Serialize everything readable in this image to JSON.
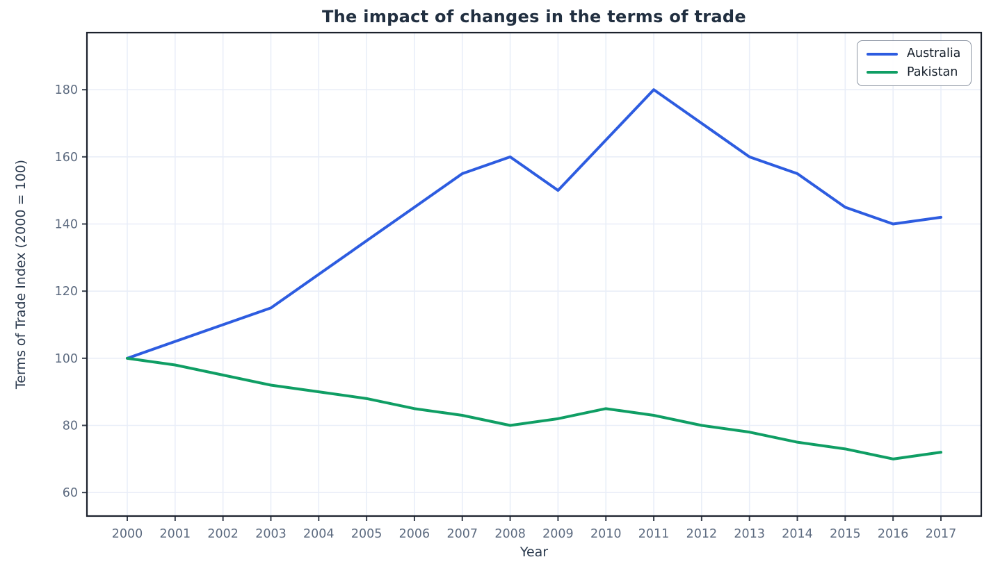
{
  "chart_data": {
    "type": "line",
    "title": "The impact of changes in the terms of trade",
    "xlabel": "Year",
    "ylabel": "Terms of Trade Index (2000 = 100)",
    "x": [
      2000,
      2001,
      2002,
      2003,
      2004,
      2005,
      2006,
      2007,
      2008,
      2009,
      2010,
      2011,
      2012,
      2013,
      2014,
      2015,
      2016,
      2017
    ],
    "series": [
      {
        "name": "Australia",
        "color": "#2d5ce0",
        "values": [
          100,
          105,
          110,
          115,
          125,
          135,
          145,
          155,
          160,
          150,
          165,
          180,
          170,
          160,
          155,
          145,
          140,
          142
        ]
      },
      {
        "name": "Pakistan",
        "color": "#0f9e64",
        "values": [
          100,
          98,
          95,
          92,
          90,
          88,
          85,
          83,
          80,
          82,
          85,
          83,
          80,
          78,
          75,
          73,
          70,
          72
        ]
      }
    ],
    "yticks": [
      60,
      80,
      100,
      120,
      140,
      160,
      180
    ],
    "ylim": [
      53,
      197
    ],
    "grid": true,
    "legend_position": "upper right",
    "colors": {
      "grid": "#e9eef8",
      "spine": "#1b212c",
      "tick_mark": "#3a4250",
      "tick_label": "#5d6b80",
      "axis_label": "#2b3a4e",
      "title": "#212f40",
      "plot_background": "#ffffff"
    }
  }
}
